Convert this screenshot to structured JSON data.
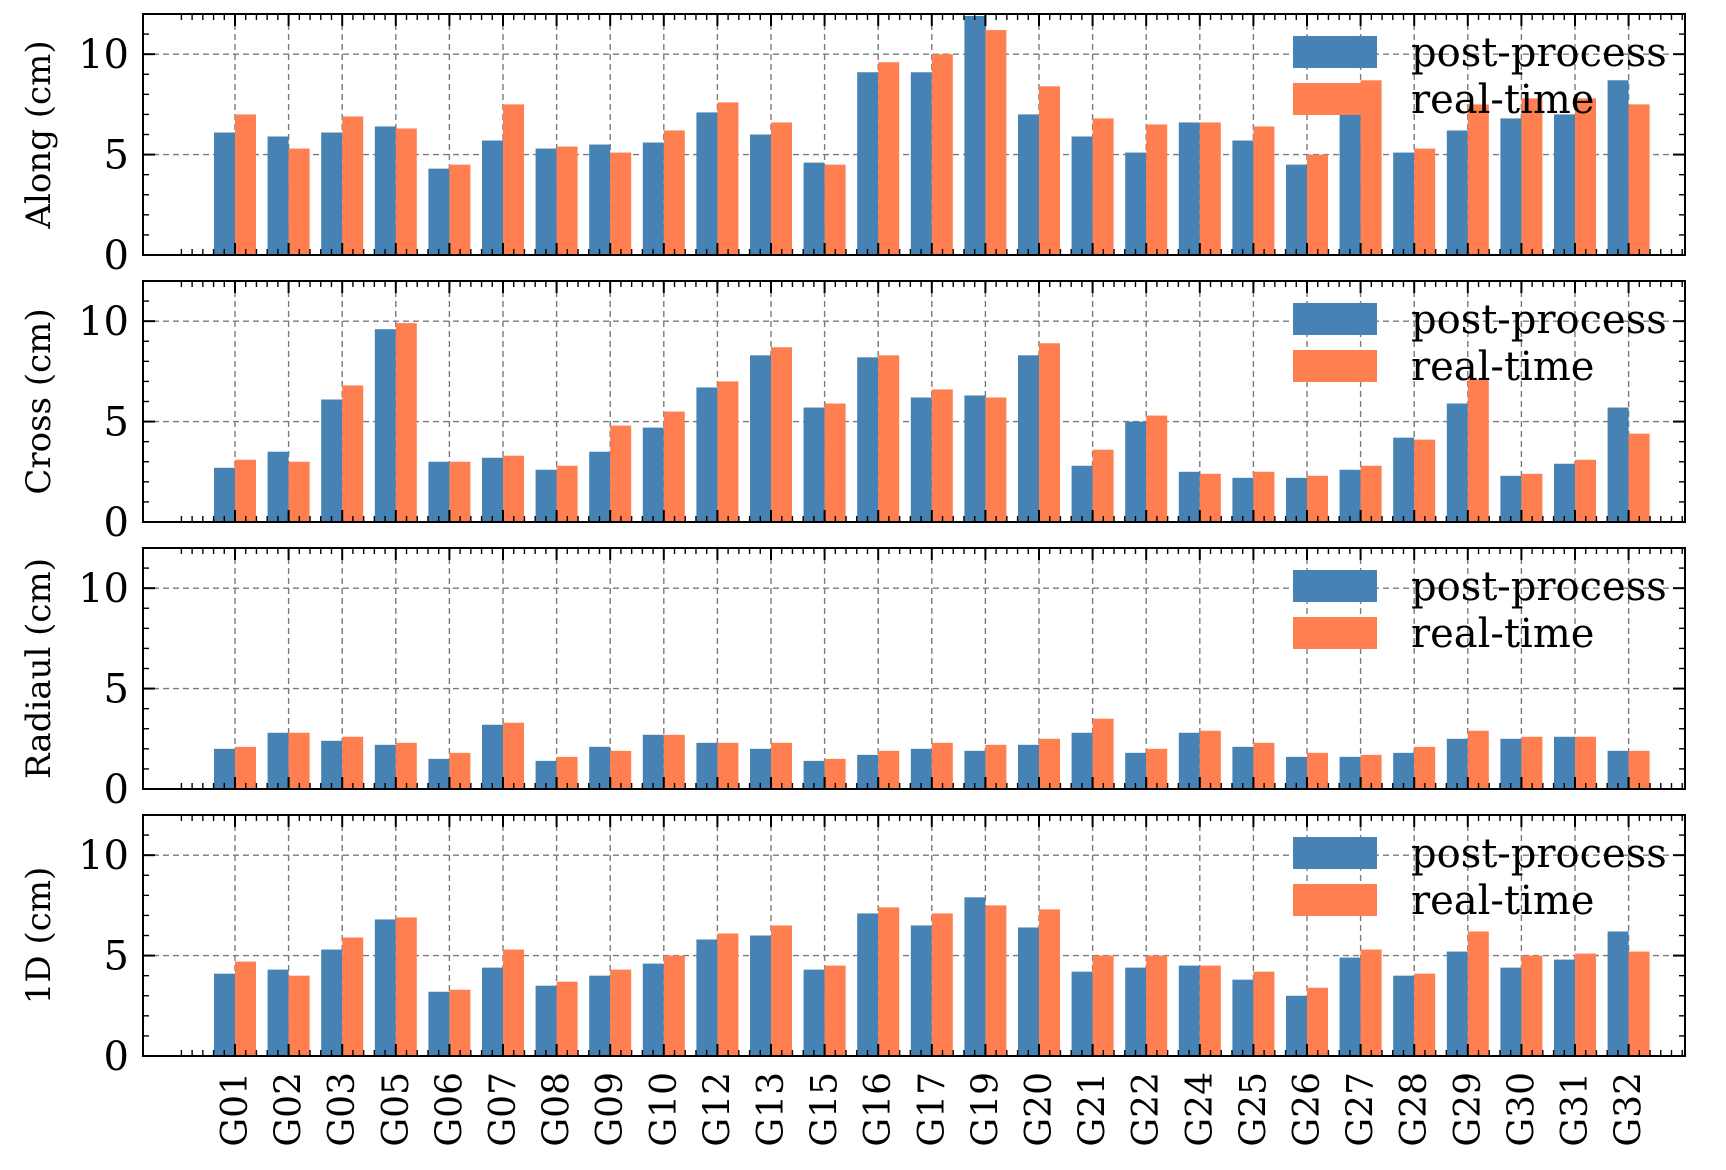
{
  "colors": {
    "post_process": "#4682b4",
    "real_time": "#ff7f50",
    "grid": "#7a7a7a"
  },
  "chart_data": [
    {
      "type": "bar",
      "ylabel": "Along (cm)",
      "ylim": [
        0,
        12
      ],
      "yticks": [
        0,
        5,
        10
      ],
      "grid": true,
      "legend_position": "top-right",
      "categories": [
        "G01",
        "G02",
        "G03",
        "G05",
        "G06",
        "G07",
        "G08",
        "G09",
        "G10",
        "G12",
        "G13",
        "G15",
        "G16",
        "G17",
        "G19",
        "G20",
        "G21",
        "G22",
        "G24",
        "G25",
        "G26",
        "G27",
        "G28",
        "G29",
        "G30",
        "G31",
        "G32"
      ],
      "series": [
        {
          "name": "post-process",
          "values": [
            6.1,
            5.9,
            6.1,
            6.4,
            4.3,
            5.7,
            5.3,
            5.5,
            5.6,
            7.1,
            6.0,
            4.6,
            9.1,
            9.1,
            11.9,
            7.0,
            5.9,
            5.1,
            6.6,
            5.7,
            4.5,
            7.9,
            5.1,
            6.2,
            6.8,
            7.0,
            8.7
          ]
        },
        {
          "name": "real-time",
          "values": [
            7.0,
            5.3,
            6.9,
            6.3,
            4.5,
            7.5,
            5.4,
            5.1,
            6.2,
            7.6,
            6.6,
            4.5,
            9.6,
            10.0,
            11.2,
            8.4,
            6.8,
            6.5,
            6.6,
            6.4,
            5.0,
            8.7,
            5.3,
            7.5,
            7.8,
            7.8,
            7.5
          ]
        }
      ]
    },
    {
      "type": "bar",
      "ylabel": "Cross (cm)",
      "ylim": [
        0,
        12
      ],
      "yticks": [
        0,
        5,
        10
      ],
      "grid": true,
      "legend_position": "top-right",
      "categories": [
        "G01",
        "G02",
        "G03",
        "G05",
        "G06",
        "G07",
        "G08",
        "G09",
        "G10",
        "G12",
        "G13",
        "G15",
        "G16",
        "G17",
        "G19",
        "G20",
        "G21",
        "G22",
        "G24",
        "G25",
        "G26",
        "G27",
        "G28",
        "G29",
        "G30",
        "G31",
        "G32"
      ],
      "series": [
        {
          "name": "post-process",
          "values": [
            2.7,
            3.5,
            6.1,
            9.6,
            3.0,
            3.2,
            2.6,
            3.5,
            4.7,
            6.7,
            8.3,
            5.7,
            8.2,
            6.2,
            6.3,
            8.3,
            2.8,
            5.0,
            2.5,
            2.2,
            2.2,
            2.6,
            4.2,
            5.9,
            2.3,
            2.9,
            5.7
          ]
        },
        {
          "name": "real-time",
          "values": [
            3.1,
            3.0,
            6.8,
            9.9,
            3.0,
            3.3,
            2.8,
            4.8,
            5.5,
            7.0,
            8.7,
            5.9,
            8.3,
            6.6,
            6.2,
            8.9,
            3.6,
            5.3,
            2.4,
            2.5,
            2.3,
            2.8,
            4.1,
            7.1,
            2.4,
            3.1,
            4.4
          ]
        }
      ]
    },
    {
      "type": "bar",
      "ylabel": "Radiaul (cm)",
      "ylim": [
        0,
        12
      ],
      "yticks": [
        0,
        5,
        10
      ],
      "grid": true,
      "legend_position": "top-right",
      "categories": [
        "G01",
        "G02",
        "G03",
        "G05",
        "G06",
        "G07",
        "G08",
        "G09",
        "G10",
        "G12",
        "G13",
        "G15",
        "G16",
        "G17",
        "G19",
        "G20",
        "G21",
        "G22",
        "G24",
        "G25",
        "G26",
        "G27",
        "G28",
        "G29",
        "G30",
        "G31",
        "G32"
      ],
      "series": [
        {
          "name": "post-process",
          "values": [
            2.0,
            2.8,
            2.4,
            2.2,
            1.5,
            3.2,
            1.4,
            2.1,
            2.7,
            2.3,
            2.0,
            1.4,
            1.7,
            2.0,
            1.9,
            2.2,
            2.8,
            1.8,
            2.8,
            2.1,
            1.6,
            1.6,
            1.8,
            2.5,
            2.5,
            2.6,
            1.9
          ]
        },
        {
          "name": "real-time",
          "values": [
            2.1,
            2.8,
            2.6,
            2.3,
            1.8,
            3.3,
            1.6,
            1.9,
            2.7,
            2.3,
            2.3,
            1.5,
            1.9,
            2.3,
            2.2,
            2.5,
            3.5,
            2.0,
            2.9,
            2.3,
            1.8,
            1.7,
            2.1,
            2.9,
            2.6,
            2.6,
            1.9
          ]
        }
      ]
    },
    {
      "type": "bar",
      "ylabel": "1D (cm)",
      "ylim": [
        0,
        12
      ],
      "yticks": [
        0,
        5,
        10
      ],
      "grid": true,
      "legend_position": "top-right",
      "categories": [
        "G01",
        "G02",
        "G03",
        "G05",
        "G06",
        "G07",
        "G08",
        "G09",
        "G10",
        "G12",
        "G13",
        "G15",
        "G16",
        "G17",
        "G19",
        "G20",
        "G21",
        "G22",
        "G24",
        "G25",
        "G26",
        "G27",
        "G28",
        "G29",
        "G30",
        "G31",
        "G32"
      ],
      "series": [
        {
          "name": "post-process",
          "values": [
            4.1,
            4.3,
            5.3,
            6.8,
            3.2,
            4.4,
            3.5,
            4.0,
            4.6,
            5.8,
            6.0,
            4.3,
            7.1,
            6.5,
            7.9,
            6.4,
            4.2,
            4.4,
            4.5,
            3.8,
            3.0,
            4.9,
            4.0,
            5.2,
            4.4,
            4.8,
            6.2
          ]
        },
        {
          "name": "real-time",
          "values": [
            4.7,
            4.0,
            5.9,
            6.9,
            3.3,
            5.3,
            3.7,
            4.3,
            5.0,
            6.1,
            6.5,
            4.5,
            7.4,
            7.1,
            7.5,
            7.3,
            5.0,
            5.0,
            4.5,
            4.2,
            3.4,
            5.3,
            4.1,
            6.2,
            5.0,
            5.1,
            5.2
          ]
        }
      ]
    }
  ]
}
